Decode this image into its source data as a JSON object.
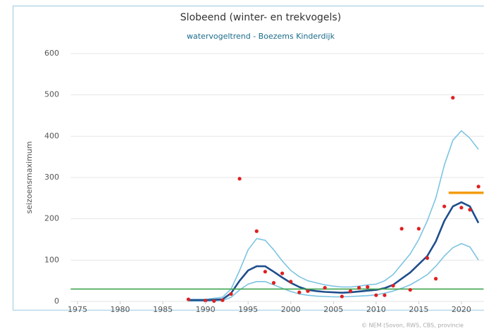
{
  "chart_data": {
    "type": "line",
    "title": "Slobeend (winter- en trekvogels)",
    "subtitle": "watervogeltrend - Boezems Kinderdijk",
    "y_label": "seizoensmaximum",
    "credit": "© NEM (Sovon, RWS, CBS, provincie",
    "xlim": [
      1974.2,
      2022.6
    ],
    "xticks": [
      1975,
      1980,
      1985,
      1990,
      1995,
      2000,
      2005,
      2010,
      2015,
      2020
    ],
    "ylim": [
      0,
      600
    ],
    "yticks": [
      0,
      100,
      200,
      300,
      400,
      500,
      600
    ],
    "grid": true,
    "series": [
      {
        "style": "line",
        "color": "#7cc4e2",
        "width": 1.6,
        "x": [
          1988,
          1990,
          1992,
          1993,
          1994,
          1995,
          1996,
          1997,
          1998,
          1999,
          2000,
          2001,
          2002,
          2003,
          2004,
          2005,
          2006,
          2007,
          2008,
          2009,
          2010,
          2011,
          2012,
          2013,
          2014,
          2015,
          2016,
          2017,
          2018,
          2019,
          2020,
          2021,
          2022
        ],
        "values": [
          5,
          5,
          10,
          30,
          75,
          125,
          152,
          148,
          125,
          98,
          75,
          60,
          50,
          45,
          40,
          37,
          35,
          35,
          37,
          40,
          42,
          50,
          65,
          90,
          115,
          150,
          195,
          250,
          330,
          390,
          413,
          395,
          368
        ]
      },
      {
        "style": "line",
        "color": "#7cc4e2",
        "width": 1.6,
        "x": [
          1988,
          1990,
          1992,
          1993,
          1994,
          1995,
          1996,
          1997,
          1998,
          1999,
          2000,
          2001,
          2002,
          2003,
          2004,
          2005,
          2006,
          2007,
          2008,
          2009,
          2010,
          2011,
          2012,
          2013,
          2014,
          2015,
          2016,
          2017,
          2018,
          2019,
          2020,
          2021,
          2022
        ],
        "values": [
          1,
          1,
          2,
          10,
          28,
          42,
          48,
          48,
          40,
          32,
          24,
          18,
          15,
          13,
          12,
          11,
          11,
          12,
          13,
          14,
          16,
          20,
          25,
          32,
          40,
          52,
          65,
          85,
          110,
          130,
          140,
          132,
          100
        ]
      },
      {
        "style": "line",
        "color": "#1f4e8c",
        "width": 2.6,
        "x": [
          1988,
          1990,
          1992,
          1993,
          1994,
          1995,
          1996,
          1997,
          1998,
          1999,
          2000,
          2001,
          2002,
          2003,
          2004,
          2005,
          2006,
          2007,
          2008,
          2009,
          2010,
          2011,
          2012,
          2013,
          2014,
          2015,
          2016,
          2017,
          2018,
          2019,
          2020,
          2021,
          2022
        ],
        "values": [
          3,
          3,
          5,
          20,
          50,
          75,
          85,
          85,
          72,
          58,
          45,
          35,
          28,
          25,
          23,
          22,
          21,
          22,
          24,
          26,
          28,
          32,
          40,
          55,
          70,
          90,
          110,
          145,
          195,
          230,
          240,
          230,
          190
        ]
      },
      {
        "style": "line",
        "color": "#3fa34d",
        "width": 1.6,
        "x": [
          1974.2,
          2022.6
        ],
        "values": [
          30,
          30
        ]
      },
      {
        "style": "line",
        "color": "#f39c12",
        "width": 3.5,
        "x": [
          2018.5,
          2022.6
        ],
        "values": [
          263,
          263
        ]
      },
      {
        "style": "points",
        "color": "#e02020",
        "x": [
          1988,
          1990,
          1991,
          1992,
          1993,
          1994,
          1996,
          1997,
          1998,
          1999,
          2000,
          2001,
          2002,
          2004,
          2006,
          2007,
          2008,
          2009,
          2010,
          2011,
          2012,
          2013,
          2014,
          2015,
          2016,
          2017,
          2018,
          2019,
          2020,
          2021,
          2022
        ],
        "values": [
          5,
          2,
          1,
          3,
          18,
          297,
          170,
          72,
          45,
          68,
          48,
          22,
          25,
          33,
          12,
          25,
          33,
          35,
          15,
          15,
          38,
          176,
          28,
          176,
          105,
          55,
          230,
          493,
          227,
          222,
          278
        ]
      }
    ]
  }
}
